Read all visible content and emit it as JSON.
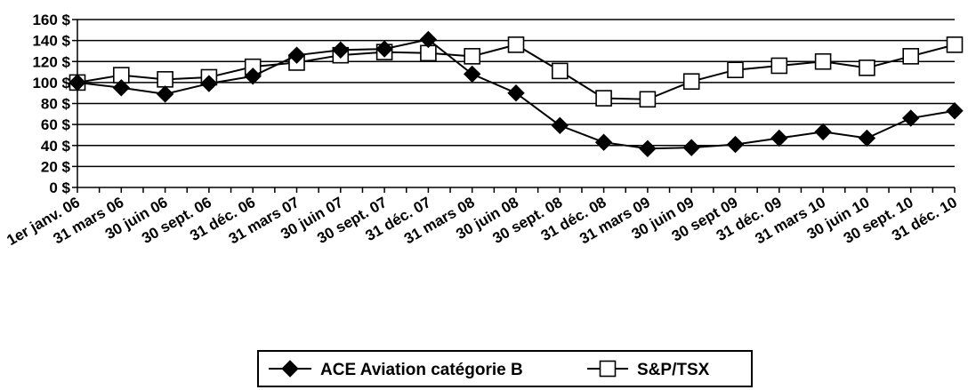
{
  "chart_data": {
    "type": "line",
    "title": "",
    "xlabel": "",
    "ylabel": "",
    "categories": [
      "1er janv. 06",
      "31 mars 06",
      "30 juin 06",
      "30 sept. 06",
      "31 déc. 06",
      "31 mars 07",
      "30 juin 07",
      "30 sept. 07",
      "31 déc. 07",
      "31 mars 08",
      "30 juin 08",
      "30 sept. 08",
      "31 déc. 08",
      "31 mars 09",
      "30 juin 09",
      "30 sept 09",
      "31 déc. 09",
      "31 mars 10",
      "30 juin 10",
      "30 sept. 10",
      "31 déc. 10"
    ],
    "ylim": [
      0,
      160
    ],
    "yticks": [
      0,
      20,
      40,
      60,
      80,
      100,
      120,
      140,
      160
    ],
    "ytick_labels": [
      "0 $",
      "20 $",
      "40 $",
      "60 $",
      "80 $",
      "100 $",
      "120 $",
      "140 $",
      "160 $"
    ],
    "grid": true,
    "legend_position": "bottom",
    "series": [
      {
        "name": "ACE Aviation catégorie B",
        "marker": "filled-diamond",
        "color": "#000000",
        "values": [
          100,
          95,
          89,
          99,
          106,
          126,
          131,
          132,
          141,
          108,
          90,
          59,
          43,
          37,
          38,
          41,
          47,
          53,
          47,
          66,
          73
        ]
      },
      {
        "name": "S&P/TSX",
        "marker": "open-square",
        "color": "#000000",
        "values": [
          100,
          107,
          103,
          105,
          115,
          119,
          126,
          129,
          128,
          125,
          136,
          111,
          85,
          84,
          101,
          112,
          116,
          120,
          114,
          125,
          136
        ]
      }
    ]
  }
}
